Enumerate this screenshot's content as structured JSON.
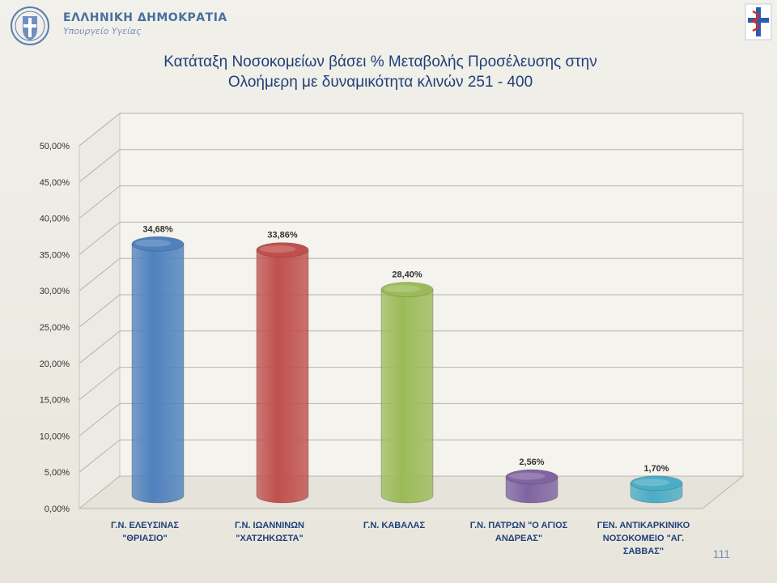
{
  "header": {
    "country": "ΕΛΛΗΝΙΚΗ ΔΗΜΟΚΡΑΤΙΑ",
    "ministry": "Υπουργείο Υγείας",
    "logo_icon": "greek-coat-of-arms-icon",
    "corner_icon": "medical-caduceus-icon"
  },
  "page_number": "111",
  "chart_data": {
    "type": "bar",
    "title": "Κατάταξη Νοσοκομείων βάσει % Μεταβολής Προσέλευσης στην Ολοήμερη με δυναμικότητα κλινών 251 - 400",
    "title_lines": [
      "Κατάταξη Νοσοκομείων βάσει % Μεταβολής Προσέλευσης στην",
      "Ολοήμερη με δυναμικότητα κλινών 251 - 400"
    ],
    "categories": [
      [
        "Γ.Ν. ΕΛΕΥΣΙΝΑΣ",
        "\"ΘΡΙΑΣΙΟ\""
      ],
      [
        "Γ.Ν. ΙΩΑΝΝΙΝΩΝ",
        "\"ΧΑΤΖΗΚΩΣΤΑ\""
      ],
      [
        "Γ.Ν. ΚΑΒΑΛΑΣ"
      ],
      [
        "Γ.Ν. ΠΑΤΡΩΝ \"Ο ΑΓΙΟΣ",
        "ΑΝΔΡΕΑΣ\""
      ],
      [
        "ΓΕΝ. ΑΝΤΙΚΑΡΚΙΝΙΚΟ",
        "ΝΟΣΟΚΟΜΕΙΟ \"ΑΓ.",
        "ΣΑΒΒΑΣ\""
      ]
    ],
    "values": [
      34.68,
      33.86,
      28.4,
      2.56,
      1.7
    ],
    "value_labels": [
      "34,68%",
      "33,86%",
      "28,40%",
      "2,56%",
      "1,70%"
    ],
    "colors": [
      "#4f81bd",
      "#c0504d",
      "#9bbb59",
      "#8064a2",
      "#4bacc6"
    ],
    "ylim": [
      0,
      50
    ],
    "yticks": [
      "0,00%",
      "5,00%",
      "10,00%",
      "15,00%",
      "20,00%",
      "25,00%",
      "30,00%",
      "35,00%",
      "40,00%",
      "45,00%",
      "50,00%"
    ],
    "grid": true,
    "legend": "none",
    "style": "3d-cylinder"
  }
}
